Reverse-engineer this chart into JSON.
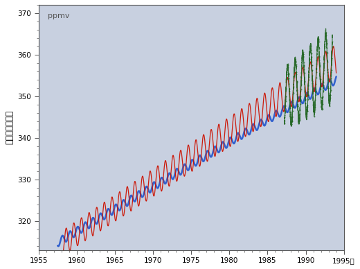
{
  "ylabel": "二酸化炒素濃度",
  "ylabel_unit": "ppmv",
  "xlim": [
    1955,
    1995
  ],
  "ylim": [
    313,
    372
  ],
  "xticks": [
    1955,
    1960,
    1965,
    1970,
    1975,
    1980,
    1985,
    1990,
    1995
  ],
  "ytick_major": [
    320,
    330,
    340,
    350,
    360,
    370
  ],
  "plot_bg_color": "#c8d0e0",
  "outer_bg_color": "#ffffff",
  "mauna_loa_color": "#cc1100",
  "south_pole_color": "#2255cc",
  "ayasato_color": "#226622",
  "mauna_loa_start": 1958.0,
  "mauna_loa_end": 1994.0,
  "mauna_loa_v0": 314.5,
  "mauna_loa_v1": 358.5,
  "mauna_loa_amp0": 3.0,
  "mauna_loa_amp1": 4.0,
  "south_pole_start": 1957.5,
  "south_pole_end": 1994.0,
  "south_pole_v0": 314.8,
  "south_pole_v1": 354.0,
  "south_pole_amp": 1.0,
  "ayasato_start": 1987.2,
  "ayasato_end": 1993.5,
  "ayasato_v0": 349.5,
  "ayasato_v1": 357.5,
  "ayasato_amp0": 7.0,
  "ayasato_amp1": 9.0
}
